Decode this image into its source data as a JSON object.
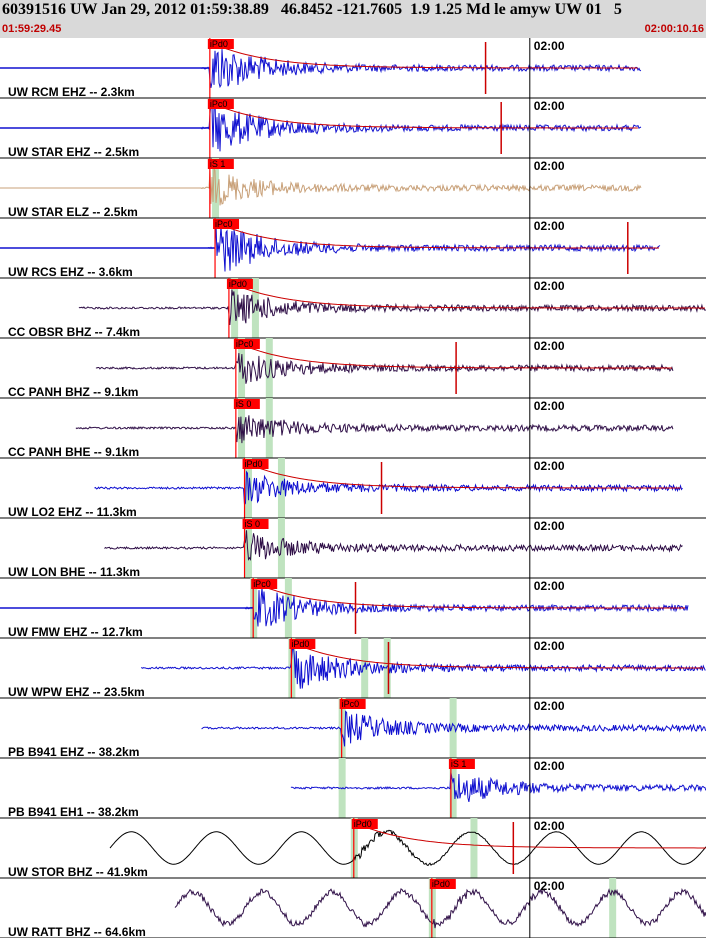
{
  "header": {
    "title": "60391516 UW Jan 29, 2012 01:59:38.89   46.8452 -121.7605  1.9 1.25 Md le amyw UW 01   5",
    "start_time": "01:59:29.45",
    "end_time": "02:00:10.16"
  },
  "colors": {
    "header_bg": "#d9d9d9",
    "time_text": "#c00000",
    "pick_box": "#ff0000",
    "arrival_band": "#bfe3bf",
    "fit_curve": "#cc0000",
    "trace_blue": "#1010d0",
    "trace_tan": "#c8a078",
    "trace_dark": "#301048",
    "trace_black": "#000000"
  },
  "chart_data": {
    "type": "line",
    "x_unit": "seconds after 01:59:29.45",
    "x_range": [
      0,
      40.71
    ],
    "ticks": [
      {
        "label": "02:00",
        "t": 30.55
      }
    ],
    "traces": [
      {
        "label": "UW RCM EHZ -- 2.3km",
        "color_key": "trace_blue",
        "style": "quake",
        "amp": 1.0,
        "pick": "iPd0",
        "p": 12.1,
        "green": [],
        "end": 37.0,
        "spike": 28.0,
        "fit": true
      },
      {
        "label": "UW STAR EHZ -- 2.5km",
        "color_key": "trace_blue",
        "style": "quake",
        "amp": 1.0,
        "pick": "iPc0",
        "p": 12.1,
        "green": [],
        "end": 37.0,
        "spike": 28.9,
        "fit": true
      },
      {
        "label": "UW STAR ELZ -- 2.5km",
        "color_key": "trace_tan",
        "style": "quake",
        "amp": 0.65,
        "pick": "iS 1",
        "p": 12.1,
        "green": [
          12.4
        ],
        "end": 37.0,
        "spike": null,
        "fit": false
      },
      {
        "label": "UW RCS EHZ -- 3.6km",
        "color_key": "trace_blue",
        "style": "quake",
        "amp": 1.0,
        "pick": "iPc0",
        "p": 12.4,
        "green": [],
        "end": 38.1,
        "spike": 36.2,
        "fit": true
      },
      {
        "label": "CC OBSR BHZ -- 7.4km",
        "color_key": "trace_dark",
        "style": "quake",
        "amp": 0.65,
        "pick": "iPd0",
        "p": 13.2,
        "green": [
          13.5,
          14.7
        ],
        "end": 40.71,
        "spike": null,
        "fit": true
      },
      {
        "label": "CC PANH BHZ -- 9.1km",
        "color_key": "trace_dark",
        "style": "quake",
        "amp": 0.6,
        "pick": "iPc0",
        "p": 13.6,
        "green": [
          13.9,
          15.5
        ],
        "end": 38.8,
        "spike": 26.3,
        "fit": true
      },
      {
        "label": "CC PANH BHE -- 9.1km",
        "color_key": "trace_dark",
        "style": "quake",
        "amp": 0.55,
        "pick": "iS 0",
        "p": 13.6,
        "green": [
          13.9,
          15.5
        ],
        "end": 38.8,
        "spike": null,
        "fit": false
      },
      {
        "label": "UW LO2 EHZ -- 11.3km",
        "color_key": "trace_blue",
        "style": "quake",
        "amp": 0.55,
        "pick": "iPd0",
        "p": 14.1,
        "green": [
          14.3,
          16.2
        ],
        "end": 39.4,
        "spike": 22.0,
        "fit": true
      },
      {
        "label": "UW LON BHE -- 11.3km",
        "color_key": "trace_dark",
        "style": "quake",
        "amp": 0.55,
        "pick": "iS 0",
        "p": 14.1,
        "green": [
          14.3,
          16.2
        ],
        "end": 39.4,
        "spike": null,
        "fit": false
      },
      {
        "label": "UW FMW EHZ -- 12.7km",
        "color_key": "trace_blue",
        "style": "quake",
        "amp": 0.8,
        "pick": "iPc0",
        "p": 14.6,
        "green": [
          14.6,
          16.6
        ],
        "end": 39.7,
        "spike": 20.5,
        "fit": true
      },
      {
        "label": "UW WPW EHZ -- 23.5km",
        "color_key": "trace_blue",
        "style": "quake",
        "amp": 0.8,
        "pick": "iPd0",
        "p": 16.8,
        "green": [
          16.8,
          21.0,
          22.3
        ],
        "end": 42.2,
        "spike": 22.4,
        "fit": true
      },
      {
        "label": "PB B941 EHZ -- 38.2km",
        "color_key": "trace_blue",
        "style": "quake",
        "amp": 0.6,
        "pick": "iPc0",
        "p": 19.7,
        "green": [
          19.7,
          26.1
        ],
        "end": 44.8,
        "spike": null,
        "fit": false
      },
      {
        "label": "PB B941 EH1 -- 38.2km",
        "color_key": "trace_blue",
        "style": "quake",
        "amp": 0.6,
        "pick": "iS 1",
        "p": 26.0,
        "green": [
          19.7,
          26.1
        ],
        "end": 44.8,
        "spike": null,
        "fit": false
      },
      {
        "label": "UW STOR BHZ -- 41.9km",
        "color_key": "trace_black",
        "style": "wave",
        "amp": 0.9,
        "pick": "iPd0",
        "p": 20.4,
        "green": [
          20.4,
          27.3
        ],
        "end": 45.4,
        "spike": 29.6,
        "fit": true
      },
      {
        "label": "UW RATT BHZ -- 64.6km",
        "color_key": "trace_dark",
        "style": "wave2",
        "amp": 0.9,
        "pick": "iPd0",
        "p": 24.9,
        "green": [
          24.9,
          35.3
        ],
        "end": 50.0,
        "spike": null,
        "fit": false
      }
    ]
  }
}
